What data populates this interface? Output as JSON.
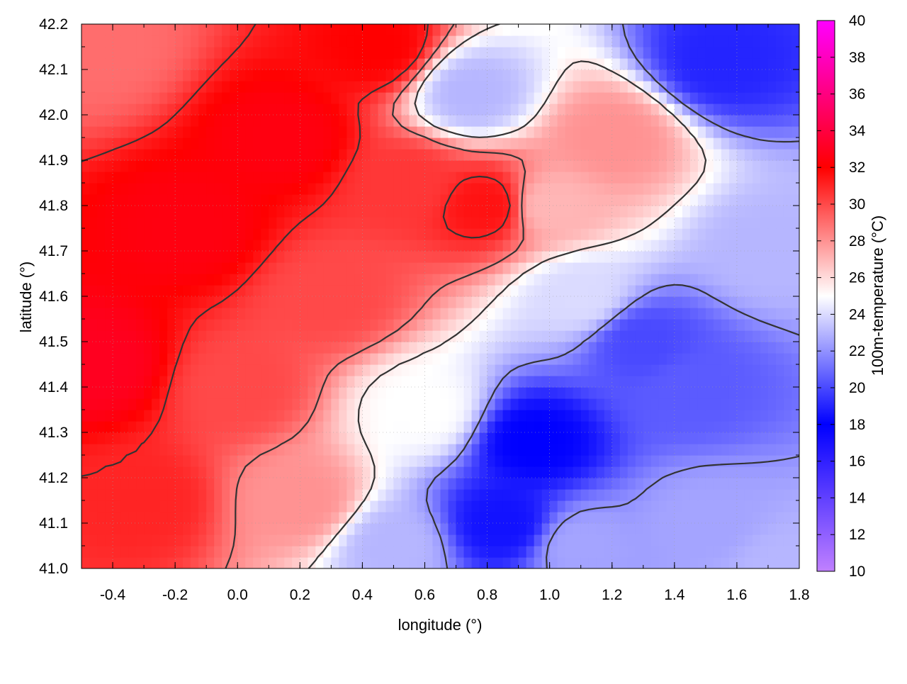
{
  "chart_data": {
    "type": "heatmap",
    "title": "",
    "xlabel": "longitude (°)",
    "ylabel": "latitude (°)",
    "colorbar_label": "100m-temperature (°C)",
    "xlim": [
      -0.5,
      1.8
    ],
    "ylim": [
      41.0,
      42.2
    ],
    "xticks": [
      -0.4,
      -0.2,
      0.0,
      0.2,
      0.4,
      0.6,
      0.8,
      1.0,
      1.2,
      1.4,
      1.6,
      1.8
    ],
    "xtick_labels": [
      "-0.4",
      "-0.2",
      "0.0",
      "0.2",
      "0.4",
      "0.6",
      "0.8",
      "1.0",
      "1.2",
      "1.4",
      "1.6",
      "1.8"
    ],
    "yticks": [
      41.0,
      41.1,
      41.2,
      41.3,
      41.4,
      41.5,
      41.6,
      41.7,
      41.8,
      41.9,
      42.0,
      42.1,
      42.2
    ],
    "ytick_labels": [
      "41.0",
      "41.1",
      "41.2",
      "41.3",
      "41.4",
      "41.5",
      "41.6",
      "41.7",
      "41.8",
      "41.9",
      "42.0",
      "42.1",
      "42.2"
    ],
    "colorbar_range": [
      10,
      40
    ],
    "colorbar_ticks": [
      10,
      12,
      14,
      16,
      18,
      20,
      22,
      24,
      26,
      28,
      30,
      32,
      34,
      36,
      38,
      40
    ],
    "colorbar_tick_labels": [
      "10",
      "12",
      "14",
      "16",
      "18",
      "20",
      "22",
      "24",
      "26",
      "28",
      "30",
      "32",
      "34",
      "36",
      "38",
      "40"
    ],
    "colormap": [
      {
        "value": 10,
        "color": "#c080ff"
      },
      {
        "value": 18,
        "color": "#0000ff"
      },
      {
        "value": 25,
        "color": "#ffffff"
      },
      {
        "value": 32,
        "color": "#ff0000"
      },
      {
        "value": 40,
        "color": "#ff00ff"
      }
    ],
    "grid": true,
    "contour_color": "#333333",
    "field_anchors": [
      {
        "lon": -0.45,
        "lat": 41.45,
        "value": 33
      },
      {
        "lon": -0.15,
        "lat": 41.75,
        "value": 32.5
      },
      {
        "lon": 0.15,
        "lat": 41.95,
        "value": 32.5
      },
      {
        "lon": 0.45,
        "lat": 42.15,
        "value": 32
      },
      {
        "lon": 0.8,
        "lat": 41.8,
        "value": 31.5
      },
      {
        "lon": 0.3,
        "lat": 41.6,
        "value": 30
      },
      {
        "lon": 0.0,
        "lat": 41.4,
        "value": 30
      },
      {
        "lon": -0.3,
        "lat": 41.15,
        "value": 31
      },
      {
        "lon": 0.2,
        "lat": 41.15,
        "value": 28
      },
      {
        "lon": 0.5,
        "lat": 41.05,
        "value": 23
      },
      {
        "lon": 0.95,
        "lat": 41.28,
        "value": 18
      },
      {
        "lon": 0.85,
        "lat": 41.1,
        "value": 18.5
      },
      {
        "lon": 1.3,
        "lat": 41.5,
        "value": 20
      },
      {
        "lon": 1.45,
        "lat": 41.4,
        "value": 20.5
      },
      {
        "lon": 1.55,
        "lat": 42.12,
        "value": 19
      },
      {
        "lon": 1.7,
        "lat": 41.7,
        "value": 23
      },
      {
        "lon": 1.5,
        "lat": 41.1,
        "value": 22.5
      },
      {
        "lon": 1.2,
        "lat": 41.95,
        "value": 28
      },
      {
        "lon": 0.75,
        "lat": 42.05,
        "value": 23
      },
      {
        "lon": 1.0,
        "lat": 41.8,
        "value": 27
      },
      {
        "lon": 1.1,
        "lat": 41.6,
        "value": 24
      },
      {
        "lon": 0.6,
        "lat": 41.35,
        "value": 25
      },
      {
        "lon": 1.75,
        "lat": 41.0,
        "value": 23
      },
      {
        "lon": 1.1,
        "lat": 41.05,
        "value": 22.5
      },
      {
        "lon": -0.45,
        "lat": 42.15,
        "value": 29
      },
      {
        "lon": 0.55,
        "lat": 41.85,
        "value": 30.5
      }
    ],
    "contour_levels": [
      22,
      25.5,
      28.5,
      31
    ]
  }
}
